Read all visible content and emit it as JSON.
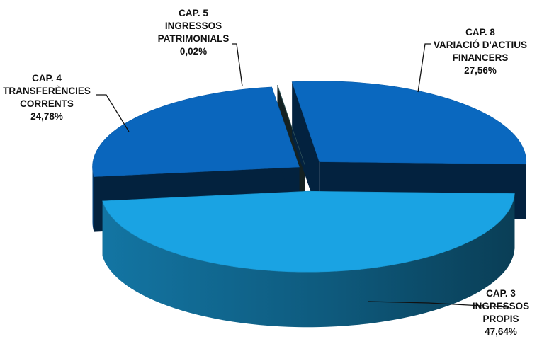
{
  "chart_data": {
    "type": "pie",
    "style": "3d-exploded",
    "legend": "none",
    "slices": [
      {
        "label_lines": [
          "CAP. 3",
          "INGRESSOS",
          "PROPIS"
        ],
        "value": 47.64,
        "value_text": "47,64%",
        "color": "#1aa3e3"
      },
      {
        "label_lines": [
          "CAP. 4",
          "TRANSFERÈNCIES",
          "CORRENTS"
        ],
        "value": 24.78,
        "value_text": "24,78%",
        "color": "#0a66bd"
      },
      {
        "label_lines": [
          "CAP. 5",
          "INGRESSOS",
          "PATRIMONIALS"
        ],
        "value": 0.02,
        "value_text": "0,02%",
        "color": "#3d6468"
      },
      {
        "label_lines": [
          "CAP. 8",
          "VARIACIÓ D'ACTIUS",
          "FINANCERS"
        ],
        "value": 27.56,
        "value_text": "27,56%",
        "color": "#0a68bf"
      }
    ]
  }
}
